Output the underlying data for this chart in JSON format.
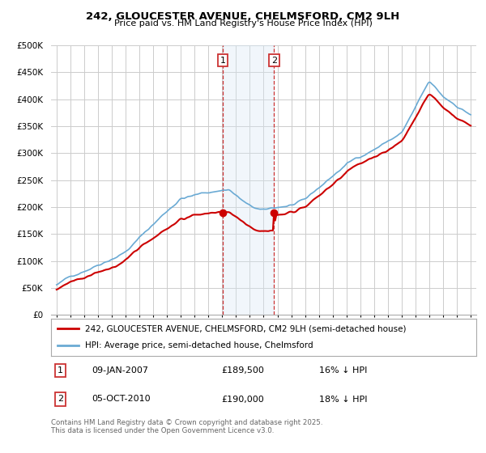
{
  "title1": "242, GLOUCESTER AVENUE, CHELMSFORD, CM2 9LH",
  "title2": "Price paid vs. HM Land Registry's House Price Index (HPI)",
  "legend1": "242, GLOUCESTER AVENUE, CHELMSFORD, CM2 9LH (semi-detached house)",
  "legend2": "HPI: Average price, semi-detached house, Chelmsford",
  "annotation1_date": "09-JAN-2007",
  "annotation1_price": "£189,500",
  "annotation1_hpi": "16% ↓ HPI",
  "annotation2_date": "05-OCT-2010",
  "annotation2_price": "£190,000",
  "annotation2_hpi": "18% ↓ HPI",
  "footer": "Contains HM Land Registry data © Crown copyright and database right 2025.\nThis data is licensed under the Open Government Licence v3.0.",
  "hpi_color": "#6aaad4",
  "price_color": "#cc0000",
  "vline_color": "#cc3333",
  "shade_color": "#d8e8f5",
  "bg_color": "#ffffff",
  "grid_color": "#cccccc",
  "ylim": [
    0,
    500000
  ],
  "yticks": [
    0,
    50000,
    100000,
    150000,
    200000,
    250000,
    300000,
    350000,
    400000,
    450000,
    500000
  ],
  "sale1_x": 2007.04,
  "sale2_x": 2010.76,
  "sale1_y": 189500,
  "sale2_y": 190000,
  "xmin": 1995,
  "xmax": 2025
}
